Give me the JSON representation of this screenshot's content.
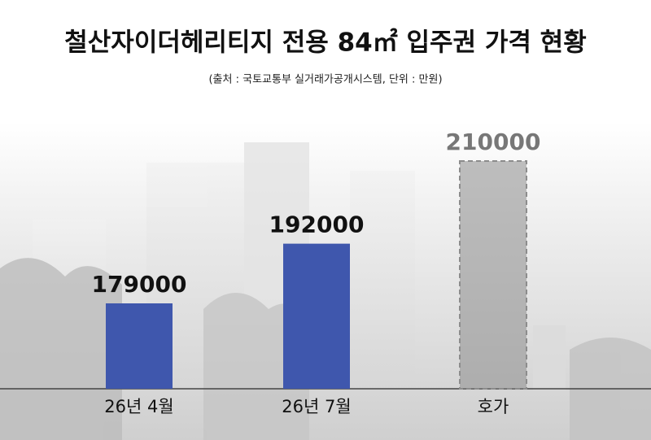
{
  "chart_data": {
    "type": "bar",
    "title": "철산자이더헤리티지 전용 84㎡ 입주권 가격 현황",
    "subtitle": "(출처 : 국토교통부 실거래가공개시스템, 단위 : 만원)",
    "categories": [
      "26년 4월",
      "26년 7월",
      "호가"
    ],
    "values": [
      179000,
      192000,
      210000
    ],
    "colors": [
      "#3f57ad",
      "#3f57ad",
      "#8c8c8c"
    ],
    "dashed": [
      false,
      false,
      true
    ]
  }
}
